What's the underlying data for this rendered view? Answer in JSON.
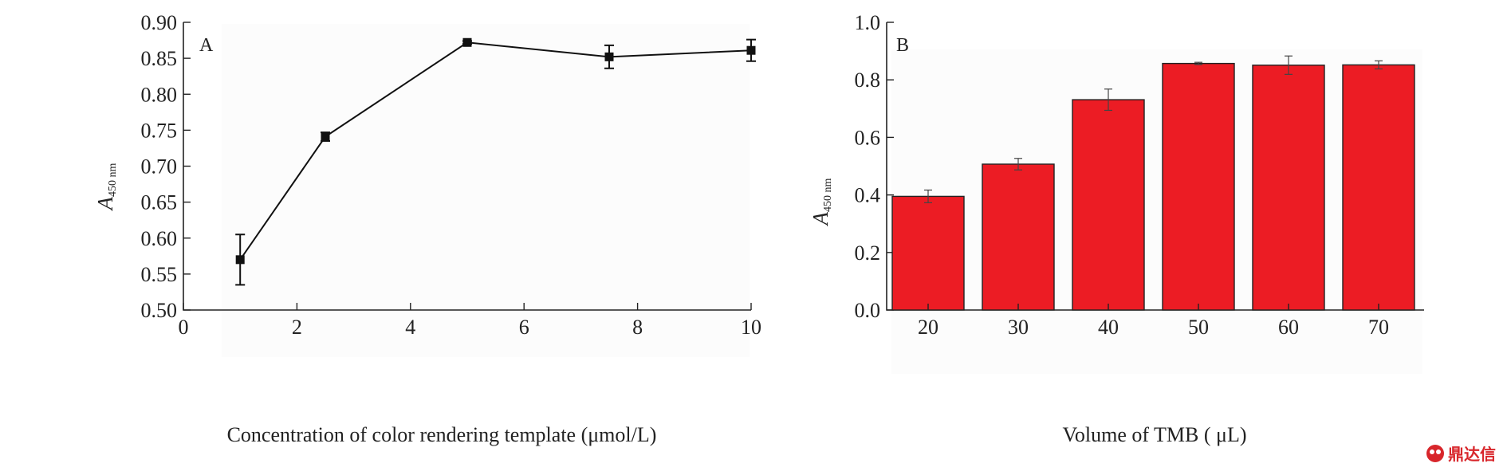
{
  "chart_data": [
    {
      "type": "line",
      "panel_label": "A",
      "xlabel": "Concentration  of  color rendering template (μmol/L)",
      "ylabel": "A",
      "ylabel_sub": "450 nm",
      "xlim": [
        0,
        10
      ],
      "ylim": [
        0.5,
        0.9
      ],
      "xticks": [
        0,
        2,
        4,
        6,
        8,
        10
      ],
      "yticks": [
        0.5,
        0.55,
        0.6,
        0.65,
        0.7,
        0.75,
        0.8,
        0.85,
        0.9
      ],
      "xtick_labels": [
        "0",
        "2",
        "4",
        "6",
        "8",
        "10"
      ],
      "ytick_labels": [
        "0.50",
        "0.55",
        "0.60",
        "0.65",
        "0.70",
        "0.75",
        "0.80",
        "0.85",
        "0.90"
      ],
      "x": [
        1,
        2.5,
        5,
        7.5,
        10
      ],
      "y": [
        0.57,
        0.741,
        0.872,
        0.852,
        0.861
      ],
      "err": [
        0.035,
        0.006,
        0.002,
        0.016,
        0.015
      ],
      "marker": "square",
      "color": "#111111",
      "grid": false
    },
    {
      "type": "bar",
      "panel_label": "B",
      "xlabel": "Volume  of  TMB  (  μL)",
      "ylabel": "A",
      "ylabel_sub": "450 nm",
      "ylim": [
        0.0,
        1.0
      ],
      "yticks": [
        0.0,
        0.2,
        0.4,
        0.6,
        0.8,
        1.0
      ],
      "ytick_labels": [
        "0.0",
        "0.2",
        "0.4",
        "0.6",
        "0.8",
        "1.0"
      ],
      "categories": [
        "20",
        "30",
        "40",
        "50",
        "60",
        "70"
      ],
      "values": [
        0.395,
        0.507,
        0.731,
        0.857,
        0.851,
        0.852
      ],
      "err": [
        0.022,
        0.02,
        0.037,
        0.004,
        0.032,
        0.014
      ],
      "color": "#ec1c24",
      "grid": false
    }
  ],
  "watermark": {
    "text": "鼎达信",
    "color": "#d8262b"
  }
}
